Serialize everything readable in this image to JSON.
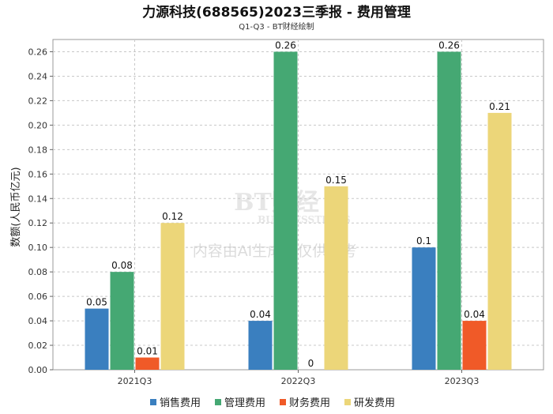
{
  "chart_data": {
    "type": "bar",
    "title": "力源科技(688565)2023三季报 - 费用管理",
    "subtitle": "Q1-Q3 - BT财经绘制",
    "ylabel": "数额(人民币亿元)",
    "xlabel": "",
    "ylim": [
      0,
      0.27
    ],
    "yticks": [
      0.0,
      0.02,
      0.04,
      0.06,
      0.08,
      0.1,
      0.12,
      0.14,
      0.16,
      0.18,
      0.2,
      0.22,
      0.24,
      0.26
    ],
    "categories": [
      "2021Q3",
      "2022Q3",
      "2023Q3"
    ],
    "series": [
      {
        "name": "销售费用",
        "color": "#3a7fbf",
        "values": [
          0.05,
          0.04,
          0.1
        ],
        "labels": [
          "0.05",
          "0.04",
          "0.1"
        ]
      },
      {
        "name": "管理费用",
        "color": "#45a873",
        "values": [
          0.08,
          0.26,
          0.26
        ],
        "labels": [
          "0.08",
          "0.26",
          "0.26"
        ]
      },
      {
        "name": "财务费用",
        "color": "#f05a28",
        "values": [
          0.01,
          0,
          0.04
        ],
        "labels": [
          "0.01",
          "0",
          "0.04"
        ]
      },
      {
        "name": "研发费用",
        "color": "#ecd679",
        "values": [
          0.12,
          0.15,
          0.21
        ],
        "labels": [
          "0.12",
          "0.15",
          "0.21"
        ]
      }
    ],
    "grid": true,
    "legend": "bottom"
  },
  "watermark": {
    "brand": "BT财经",
    "brand_en": "BUSINESSTIMES",
    "notice": "内容由AI生成，仅供参考"
  }
}
